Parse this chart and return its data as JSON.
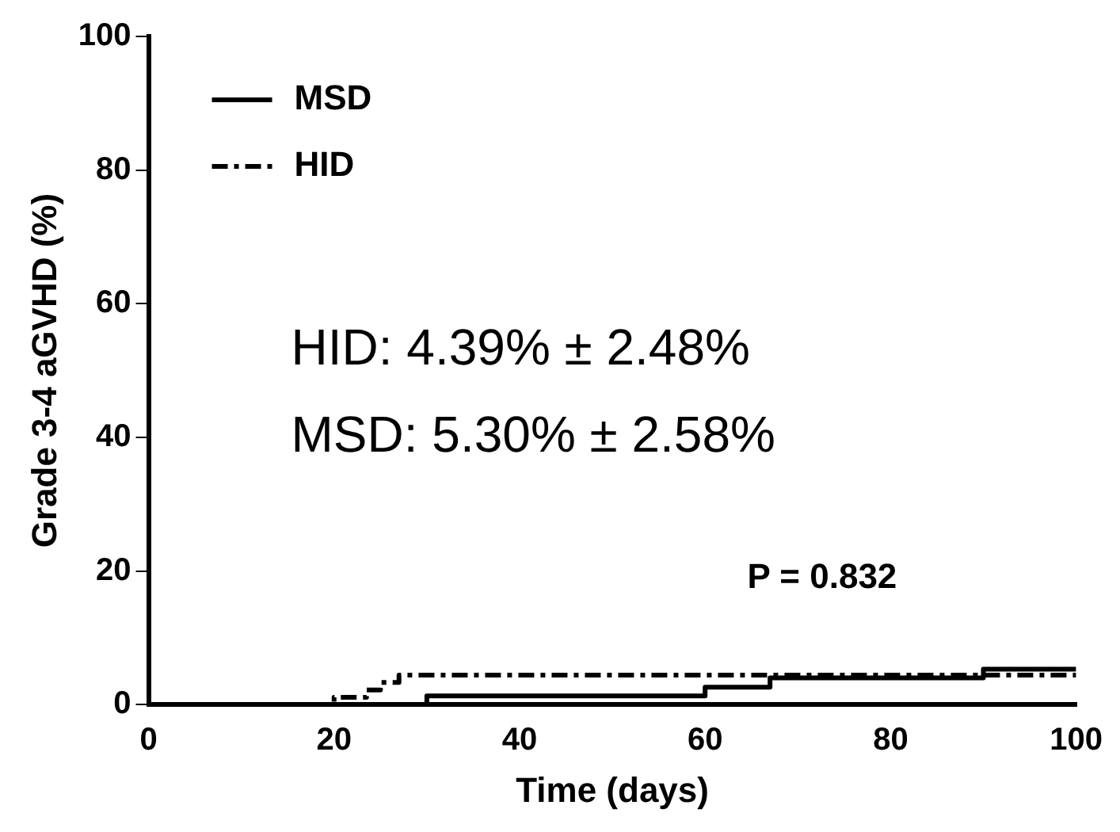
{
  "chart_data": {
    "type": "step",
    "xlabel": "Time (days)",
    "ylabel": "Grade 3-4 aGVHD (%)",
    "xlim": [
      0,
      100
    ],
    "xticks": [
      0,
      20,
      40,
      60,
      80,
      100
    ],
    "ylim": [
      0,
      100
    ],
    "yticks": [
      0,
      20,
      40,
      60,
      80,
      100
    ],
    "grid": false,
    "legend": "top left",
    "series": [
      {
        "name": "MSD",
        "color": "#000000",
        "line_style": "solid",
        "x": [
          0,
          30,
          60,
          67,
          90,
          100
        ],
        "values": [
          0,
          1.3,
          2.6,
          4.0,
          5.3,
          5.3
        ]
      },
      {
        "name": "HID",
        "color": "#000000",
        "line_style": "dashed",
        "x": [
          0,
          20,
          23.5,
          25,
          27,
          100
        ],
        "values": [
          0,
          1.1,
          2.2,
          3.3,
          4.4,
          4.4
        ]
      }
    ],
    "annotations": [
      "HID: 4.39% ± 2.48%",
      "MSD: 5.30% ± 2.58%",
      "P = 0.832"
    ]
  }
}
